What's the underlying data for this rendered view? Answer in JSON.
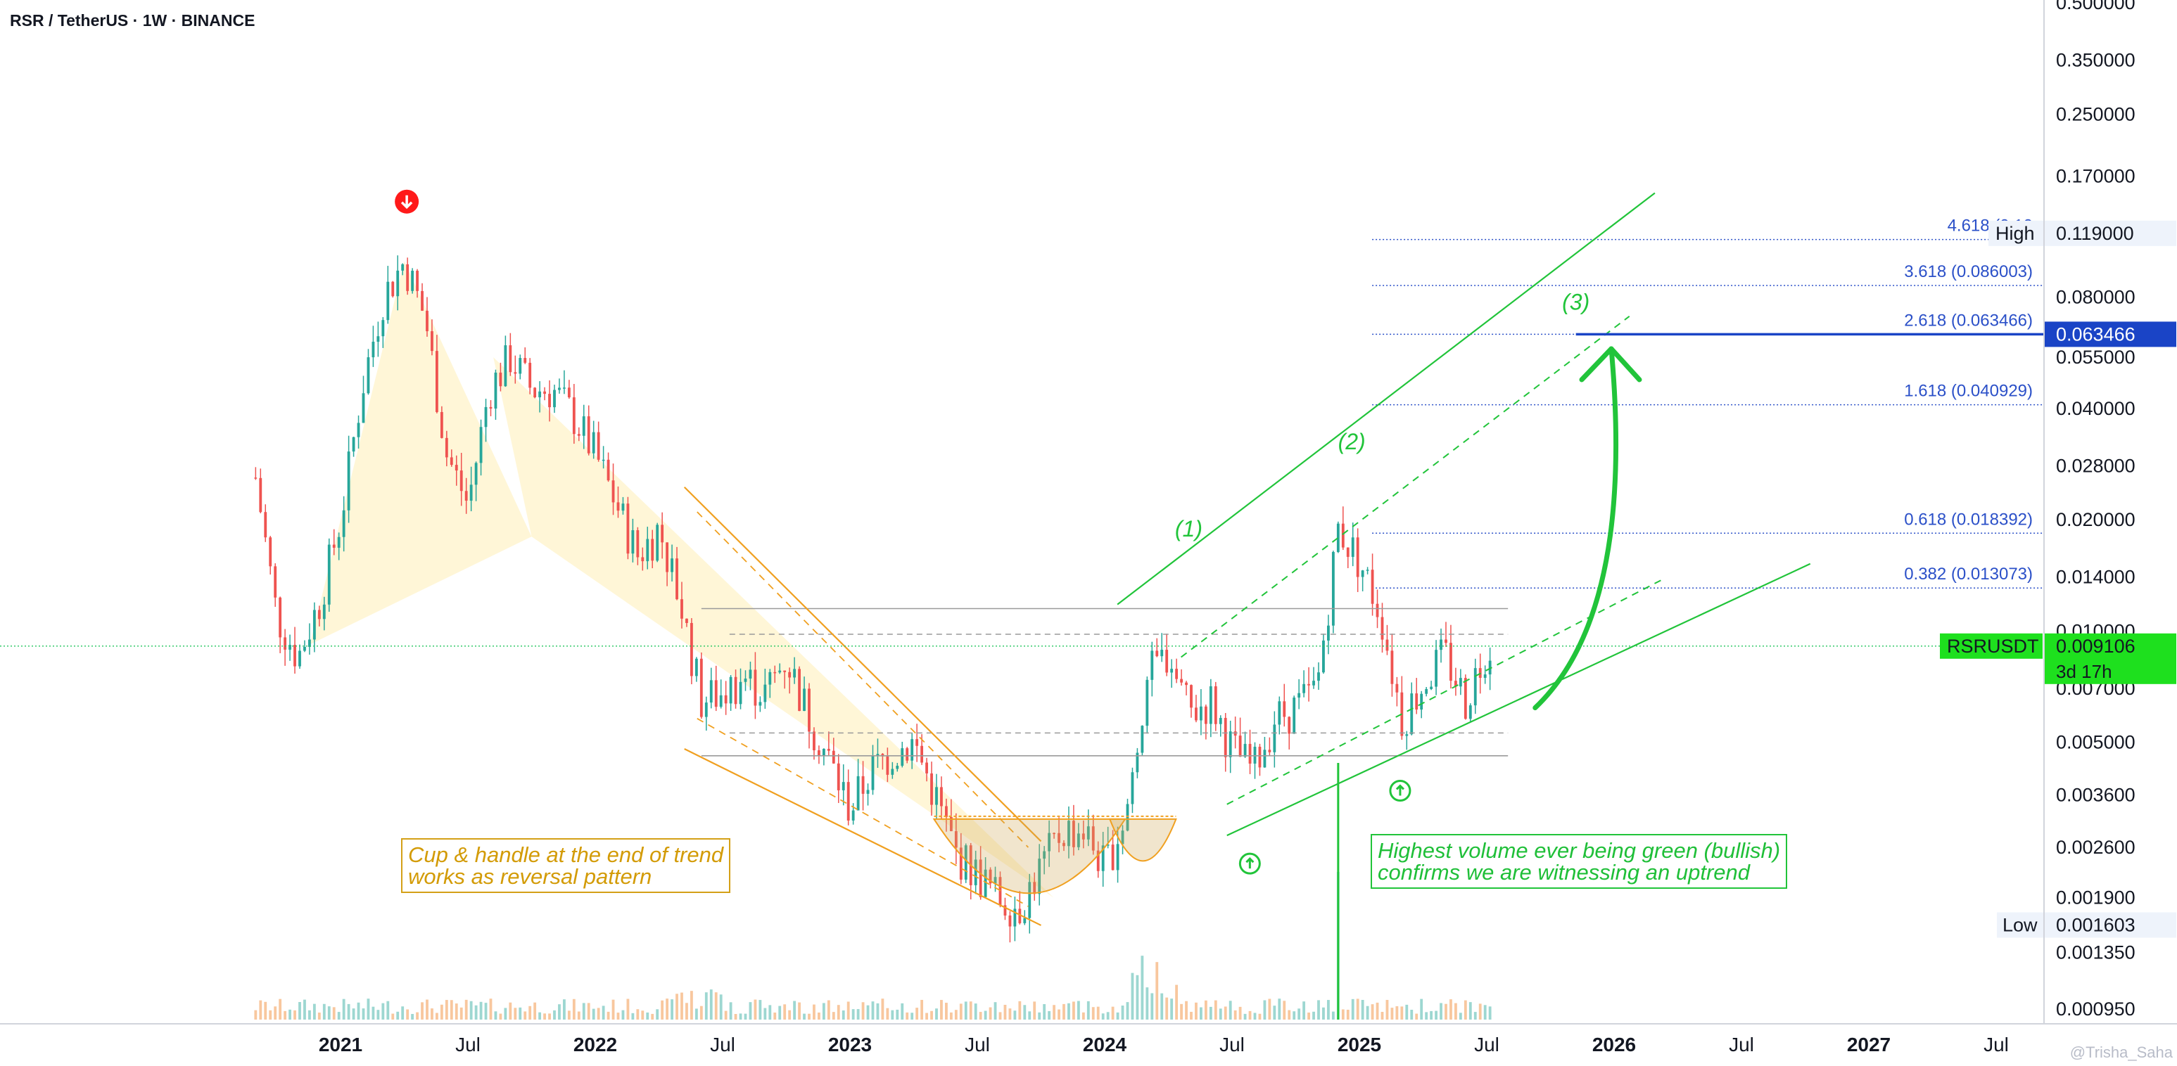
{
  "header": {
    "symbol_title": "RSR / TetherUS · 1W · BINANCE"
  },
  "annotations": {
    "cup_handle": [
      "Cup & handle at the end of trend",
      "works as reversal pattern"
    ],
    "volume_note": [
      "Highest volume ever being green (bullish)",
      "confirms we are witnessing an uptrend"
    ],
    "wave_labels": [
      "(1)",
      "(2)",
      "(3)"
    ]
  },
  "watermark": "@Trisha_Saha",
  "colors": {
    "up": "#26a69a",
    "down": "#ef5350",
    "green_line": "#21c43a",
    "orange": "#f0a020",
    "fib": "#2b50c8",
    "highlight": "#1a44c6",
    "price_tag": "#1ee01e"
  },
  "chart_data": {
    "type": "candlestick",
    "scale": "log",
    "ylim": [
      0.00085,
      0.55
    ],
    "x_ticks": [
      "2021",
      "Jul",
      "2022",
      "Jul",
      "2023",
      "Jul",
      "2024",
      "Jul",
      "2025",
      "Jul",
      "2026",
      "Jul",
      "2027",
      "Jul"
    ],
    "y_ticks": [
      "0.500000",
      "0.350000",
      "0.250000",
      "0.170000",
      "0.080000",
      "0.055000",
      "0.040000",
      "0.028000",
      "0.020000",
      "0.014000",
      "0.010000",
      "0.007000",
      "0.005000",
      "0.003600",
      "0.002600",
      "0.001900",
      "0.001350",
      "0.000950"
    ],
    "y_tick_values": [
      0.5,
      0.35,
      0.25,
      0.17,
      0.08,
      0.055,
      0.04,
      0.028,
      0.02,
      0.014,
      0.01,
      0.007,
      0.005,
      0.0036,
      0.0026,
      0.0019,
      0.00135,
      0.00095
    ],
    "price_path": [
      [
        "2020-09",
        0.026
      ],
      [
        "2020-10",
        0.011
      ],
      [
        "2020-11",
        0.0085
      ],
      [
        "2020-12",
        0.012
      ],
      [
        "2021-01",
        0.02
      ],
      [
        "2021-02",
        0.045
      ],
      [
        "2021-03",
        0.08
      ],
      [
        "2021-04",
        0.1
      ],
      [
        "2021-05",
        0.07
      ],
      [
        "2021-06",
        0.03
      ],
      [
        "2021-07",
        0.022
      ],
      [
        "2021-08",
        0.045
      ],
      [
        "2021-09",
        0.055
      ],
      [
        "2021-10",
        0.045
      ],
      [
        "2021-11",
        0.045
      ],
      [
        "2021-12",
        0.038
      ],
      [
        "2022-01",
        0.03
      ],
      [
        "2022-02",
        0.022
      ],
      [
        "2022-03",
        0.016
      ],
      [
        "2022-04",
        0.019
      ],
      [
        "2022-05",
        0.012
      ],
      [
        "2022-06",
        0.0065
      ],
      [
        "2022-07",
        0.0068
      ],
      [
        "2022-08",
        0.0075
      ],
      [
        "2022-09",
        0.0068
      ],
      [
        "2022-10",
        0.0085
      ],
      [
        "2022-11",
        0.006
      ],
      [
        "2022-12",
        0.0045
      ],
      [
        "2023-01",
        0.0033
      ],
      [
        "2023-02",
        0.0042
      ],
      [
        "2023-03",
        0.0047
      ],
      [
        "2023-04",
        0.005
      ],
      [
        "2023-05",
        0.0036
      ],
      [
        "2023-06",
        0.0025
      ],
      [
        "2023-07",
        0.0022
      ],
      [
        "2023-08",
        0.0019
      ],
      [
        "2023-09",
        0.0018
      ],
      [
        "2023-10",
        0.0023
      ],
      [
        "2023-11",
        0.0029
      ],
      [
        "2023-12",
        0.0029
      ],
      [
        "2024-01",
        0.0023
      ],
      [
        "2024-02",
        0.0032
      ],
      [
        "2024-03",
        0.0075
      ],
      [
        "2024-04",
        0.0088
      ],
      [
        "2024-05",
        0.006
      ],
      [
        "2024-06",
        0.0065
      ],
      [
        "2024-07",
        0.0048
      ],
      [
        "2024-08",
        0.0042
      ],
      [
        "2024-09",
        0.0058
      ],
      [
        "2024-10",
        0.0062
      ],
      [
        "2024-11",
        0.007
      ],
      [
        "2024-12",
        0.019
      ],
      [
        "2025-01",
        0.0155
      ],
      [
        "2025-02",
        0.0112
      ],
      [
        "2025-03",
        0.0058
      ],
      [
        "2025-04",
        0.0072
      ],
      [
        "2025-05",
        0.0087
      ],
      [
        "2025-06",
        0.0065
      ],
      [
        "2025-07",
        0.0091
      ]
    ],
    "volume_peak_date": "2024-12",
    "fib_levels": [
      {
        "label": "4.618 (0.10",
        "value": 0.1145
      },
      {
        "label": "3.618 (0.086003)",
        "value": 0.086003
      },
      {
        "label": "2.618 (0.063466)",
        "value": 0.063466
      },
      {
        "label": "1.618 (0.040929)",
        "value": 0.040929
      },
      {
        "label": "0.618 (0.018392)",
        "value": 0.018392
      },
      {
        "label": "0.382 (0.013073)",
        "value": 0.013073
      }
    ],
    "price_tags": {
      "high": {
        "label": "High",
        "value_text": "0.119000",
        "value": 0.119
      },
      "target": {
        "value_text": "0.063466",
        "value": 0.063466
      },
      "current": {
        "symbol": "RSRUSDT",
        "value_text": "0.009106",
        "value": 0.009106,
        "countdown": "3d 17h"
      },
      "low": {
        "label": "Low",
        "value_text": "0.001603",
        "value": 0.001603
      }
    },
    "range_box": {
      "from": "2022-06",
      "to": "2025-08",
      "top": 0.0115,
      "bottom": 0.0046,
      "dashed": [
        0.0098,
        0.0053
      ]
    }
  }
}
